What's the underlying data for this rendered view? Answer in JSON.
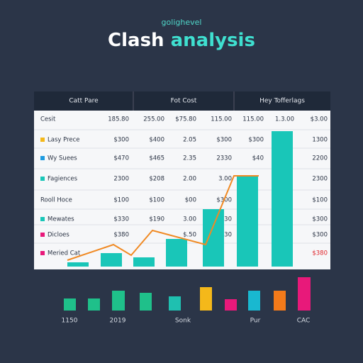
{
  "header": {
    "kicker": "golighevel",
    "title": [
      "Clash",
      "analysis"
    ]
  },
  "table": {
    "columns": [
      "Catt Pare",
      "Fot Cost",
      "Hey Tofferlags"
    ],
    "rows": [
      [
        "Cesit",
        "185.80",
        "255.00",
        "$75.80",
        "115.00",
        "115.00",
        "1.3.00",
        "$3.00"
      ],
      [
        "Lasy Prece",
        "$300",
        "$400",
        "2.05",
        "$300",
        "$300",
        "",
        "1300"
      ],
      [
        "Wy Suees",
        "$470",
        "$465",
        "2.35",
        "2330",
        "$40",
        "",
        "2200"
      ],
      [
        "Fagiences",
        "2300",
        "$208",
        "2.00",
        "3.00",
        "",
        "",
        "2300"
      ],
      [
        "Rooll Hoce",
        "$100",
        "$100",
        "$00",
        "$300",
        "",
        "",
        "$100"
      ],
      [
        "Mewates",
        "$330",
        "$190",
        "3.00",
        "$30",
        "",
        "",
        "$300"
      ],
      [
        "Dicloes",
        "$380",
        "",
        "$.50",
        "$.30",
        "",
        "",
        "$300"
      ],
      [
        "Meried Cat",
        "",
        "",
        "",
        "",
        "",
        "",
        "$380"
      ]
    ]
  },
  "footer": {
    "labels": [
      "1150",
      "2019",
      "Sonk",
      "Pur",
      "CAC"
    ]
  }
}
